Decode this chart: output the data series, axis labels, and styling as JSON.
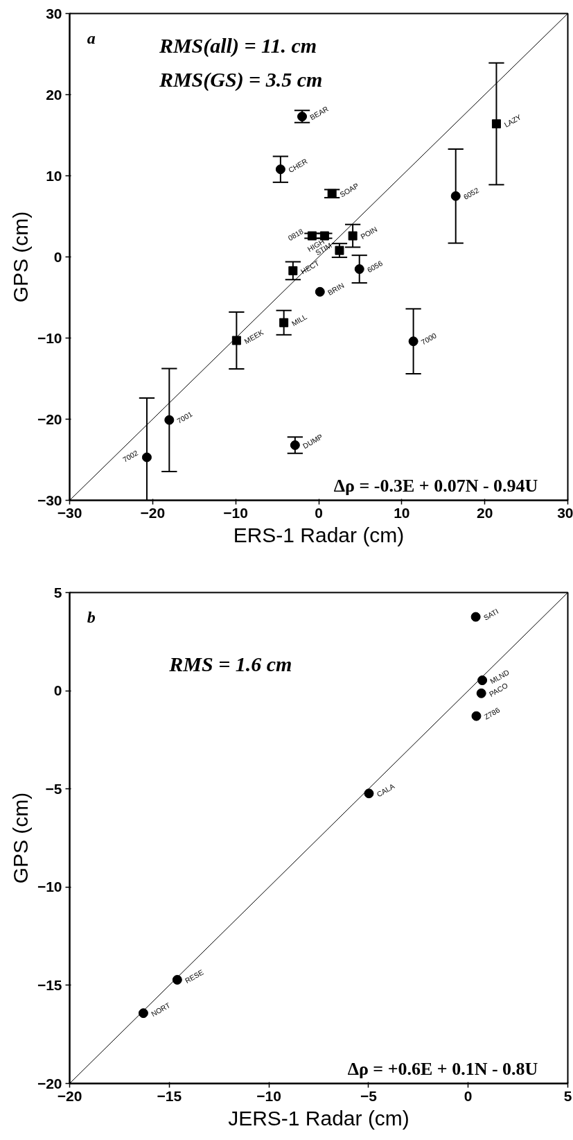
{
  "chart_data": [
    {
      "type": "scatter",
      "xlabel": "ERS-1 Radar (cm)",
      "ylabel": "GPS (cm)",
      "xlim": [
        -30,
        30
      ],
      "ylim": [
        -30,
        30
      ],
      "xticks": [
        -30,
        -20,
        -10,
        0,
        10,
        20,
        30
      ],
      "yticks": [
        -30,
        -20,
        -10,
        0,
        10,
        20,
        30
      ],
      "grid": false,
      "series": [
        {
          "type": "line",
          "color": "#000000",
          "marker": "none",
          "line_style": "solid",
          "x": [
            -30,
            30
          ],
          "values": [
            -30,
            30
          ]
        },
        {
          "type": "scatter",
          "color": "#000000",
          "marker": "circle",
          "x": [
            -2.0,
            -4.6,
            16.5,
            4.9,
            0.15,
            11.4,
            -18.0,
            -20.7,
            -2.85
          ],
          "values": [
            17.3,
            10.8,
            7.5,
            -1.5,
            -4.3,
            -10.4,
            -20.1,
            -24.7,
            -23.2
          ],
          "errors": [
            0.75,
            1.6,
            5.8,
            1.7,
            null,
            4.0,
            6.35,
            [
              -30,
              -17.4
            ],
            1.0
          ]
        },
        {
          "type": "scatter",
          "color": "#000000",
          "marker": "square",
          "x": [
            21.4,
            1.6,
            -0.8,
            0.7,
            4.1,
            2.5,
            -3.1,
            -4.2,
            -9.9
          ],
          "values": [
            16.4,
            7.8,
            2.6,
            2.6,
            2.6,
            0.8,
            -1.7,
            -8.1,
            -10.3
          ],
          "errors": [
            7.5,
            0.5,
            0.3,
            0.3,
            1.4,
            0.85,
            1.1,
            1.5,
            3.5
          ]
        }
      ],
      "annotations": [
        "a",
        "RMS(all) = 11. cm",
        "RMS(GS) = 3.5 cm",
        {
          "text": "BEAR",
          "x": -2.0,
          "y": 17.3
        },
        {
          "text": "CHER",
          "x": -4.6,
          "y": 10.8
        },
        {
          "text": "SOAP",
          "x": 1.6,
          "y": 7.8
        },
        {
          "text": "LAZY",
          "x": 21.4,
          "y": 16.4
        },
        {
          "text": "6052",
          "x": 16.5,
          "y": 7.5
        },
        {
          "text": "0818",
          "x": -0.8,
          "y": 2.6
        },
        {
          "text": "HIGH",
          "x": 0.7,
          "y": 2.6
        },
        {
          "text": "POIN",
          "x": 4.1,
          "y": 2.6
        },
        {
          "text": "STIM",
          "x": 2.5,
          "y": 0.8
        },
        {
          "text": "HECT",
          "x": -3.1,
          "y": -1.7
        },
        {
          "text": "6056",
          "x": 4.9,
          "y": -1.5
        },
        {
          "text": "BRIN",
          "x": 0.15,
          "y": -4.3
        },
        {
          "text": "MILL",
          "x": -4.2,
          "y": -8.1
        },
        {
          "text": "MEEK",
          "x": -9.9,
          "y": -10.3
        },
        {
          "text": "7000",
          "x": 11.4,
          "y": -10.4
        },
        {
          "text": "7001",
          "x": -18.0,
          "y": -20.1
        },
        {
          "text": "7002",
          "x": -20.7,
          "y": -24.7
        },
        {
          "text": "DUMP",
          "x": -2.85,
          "y": -23.2
        },
        "Δρ = -0.3E + 0.07N - 0.94U"
      ]
    },
    {
      "type": "scatter",
      "xlabel": "JERS-1 Radar (cm)",
      "ylabel": "GPS (cm)",
      "xlim": [
        -20,
        5
      ],
      "ylim": [
        -20,
        5
      ],
      "xticks": [
        -20,
        -15,
        -10,
        -5,
        0,
        5
      ],
      "yticks": [
        -20,
        -15,
        -10,
        -5,
        0,
        5
      ],
      "grid": false,
      "series": [
        {
          "type": "line",
          "color": "#000000",
          "marker": "none",
          "line_style": "solid",
          "x": [
            -20,
            5
          ],
          "values": [
            -20,
            5
          ]
        },
        {
          "type": "scatter",
          "color": "#000000",
          "marker": "circle",
          "x": [
            0.38,
            0.71,
            0.66,
            0.41,
            -4.98,
            -14.6,
            -16.3
          ],
          "values": [
            3.76,
            0.53,
            -0.13,
            -1.29,
            -5.23,
            -14.72,
            -16.42
          ]
        }
      ],
      "annotations": [
        "b",
        "RMS = 1.6 cm",
        {
          "text": "SATI",
          "x": 0.38,
          "y": 3.76
        },
        {
          "text": "MLND",
          "x": 0.71,
          "y": 0.53
        },
        {
          "text": "PACO",
          "x": 0.66,
          "y": -0.13
        },
        {
          "text": "Z786",
          "x": 0.41,
          "y": -1.29
        },
        {
          "text": "CALA",
          "x": -4.98,
          "y": -5.23
        },
        {
          "text": "RESE",
          "x": -14.6,
          "y": -14.72
        },
        {
          "text": "NORT",
          "x": -16.3,
          "y": -16.42
        },
        "Δρ = +0.6E + 0.1N - 0.8U"
      ]
    }
  ]
}
